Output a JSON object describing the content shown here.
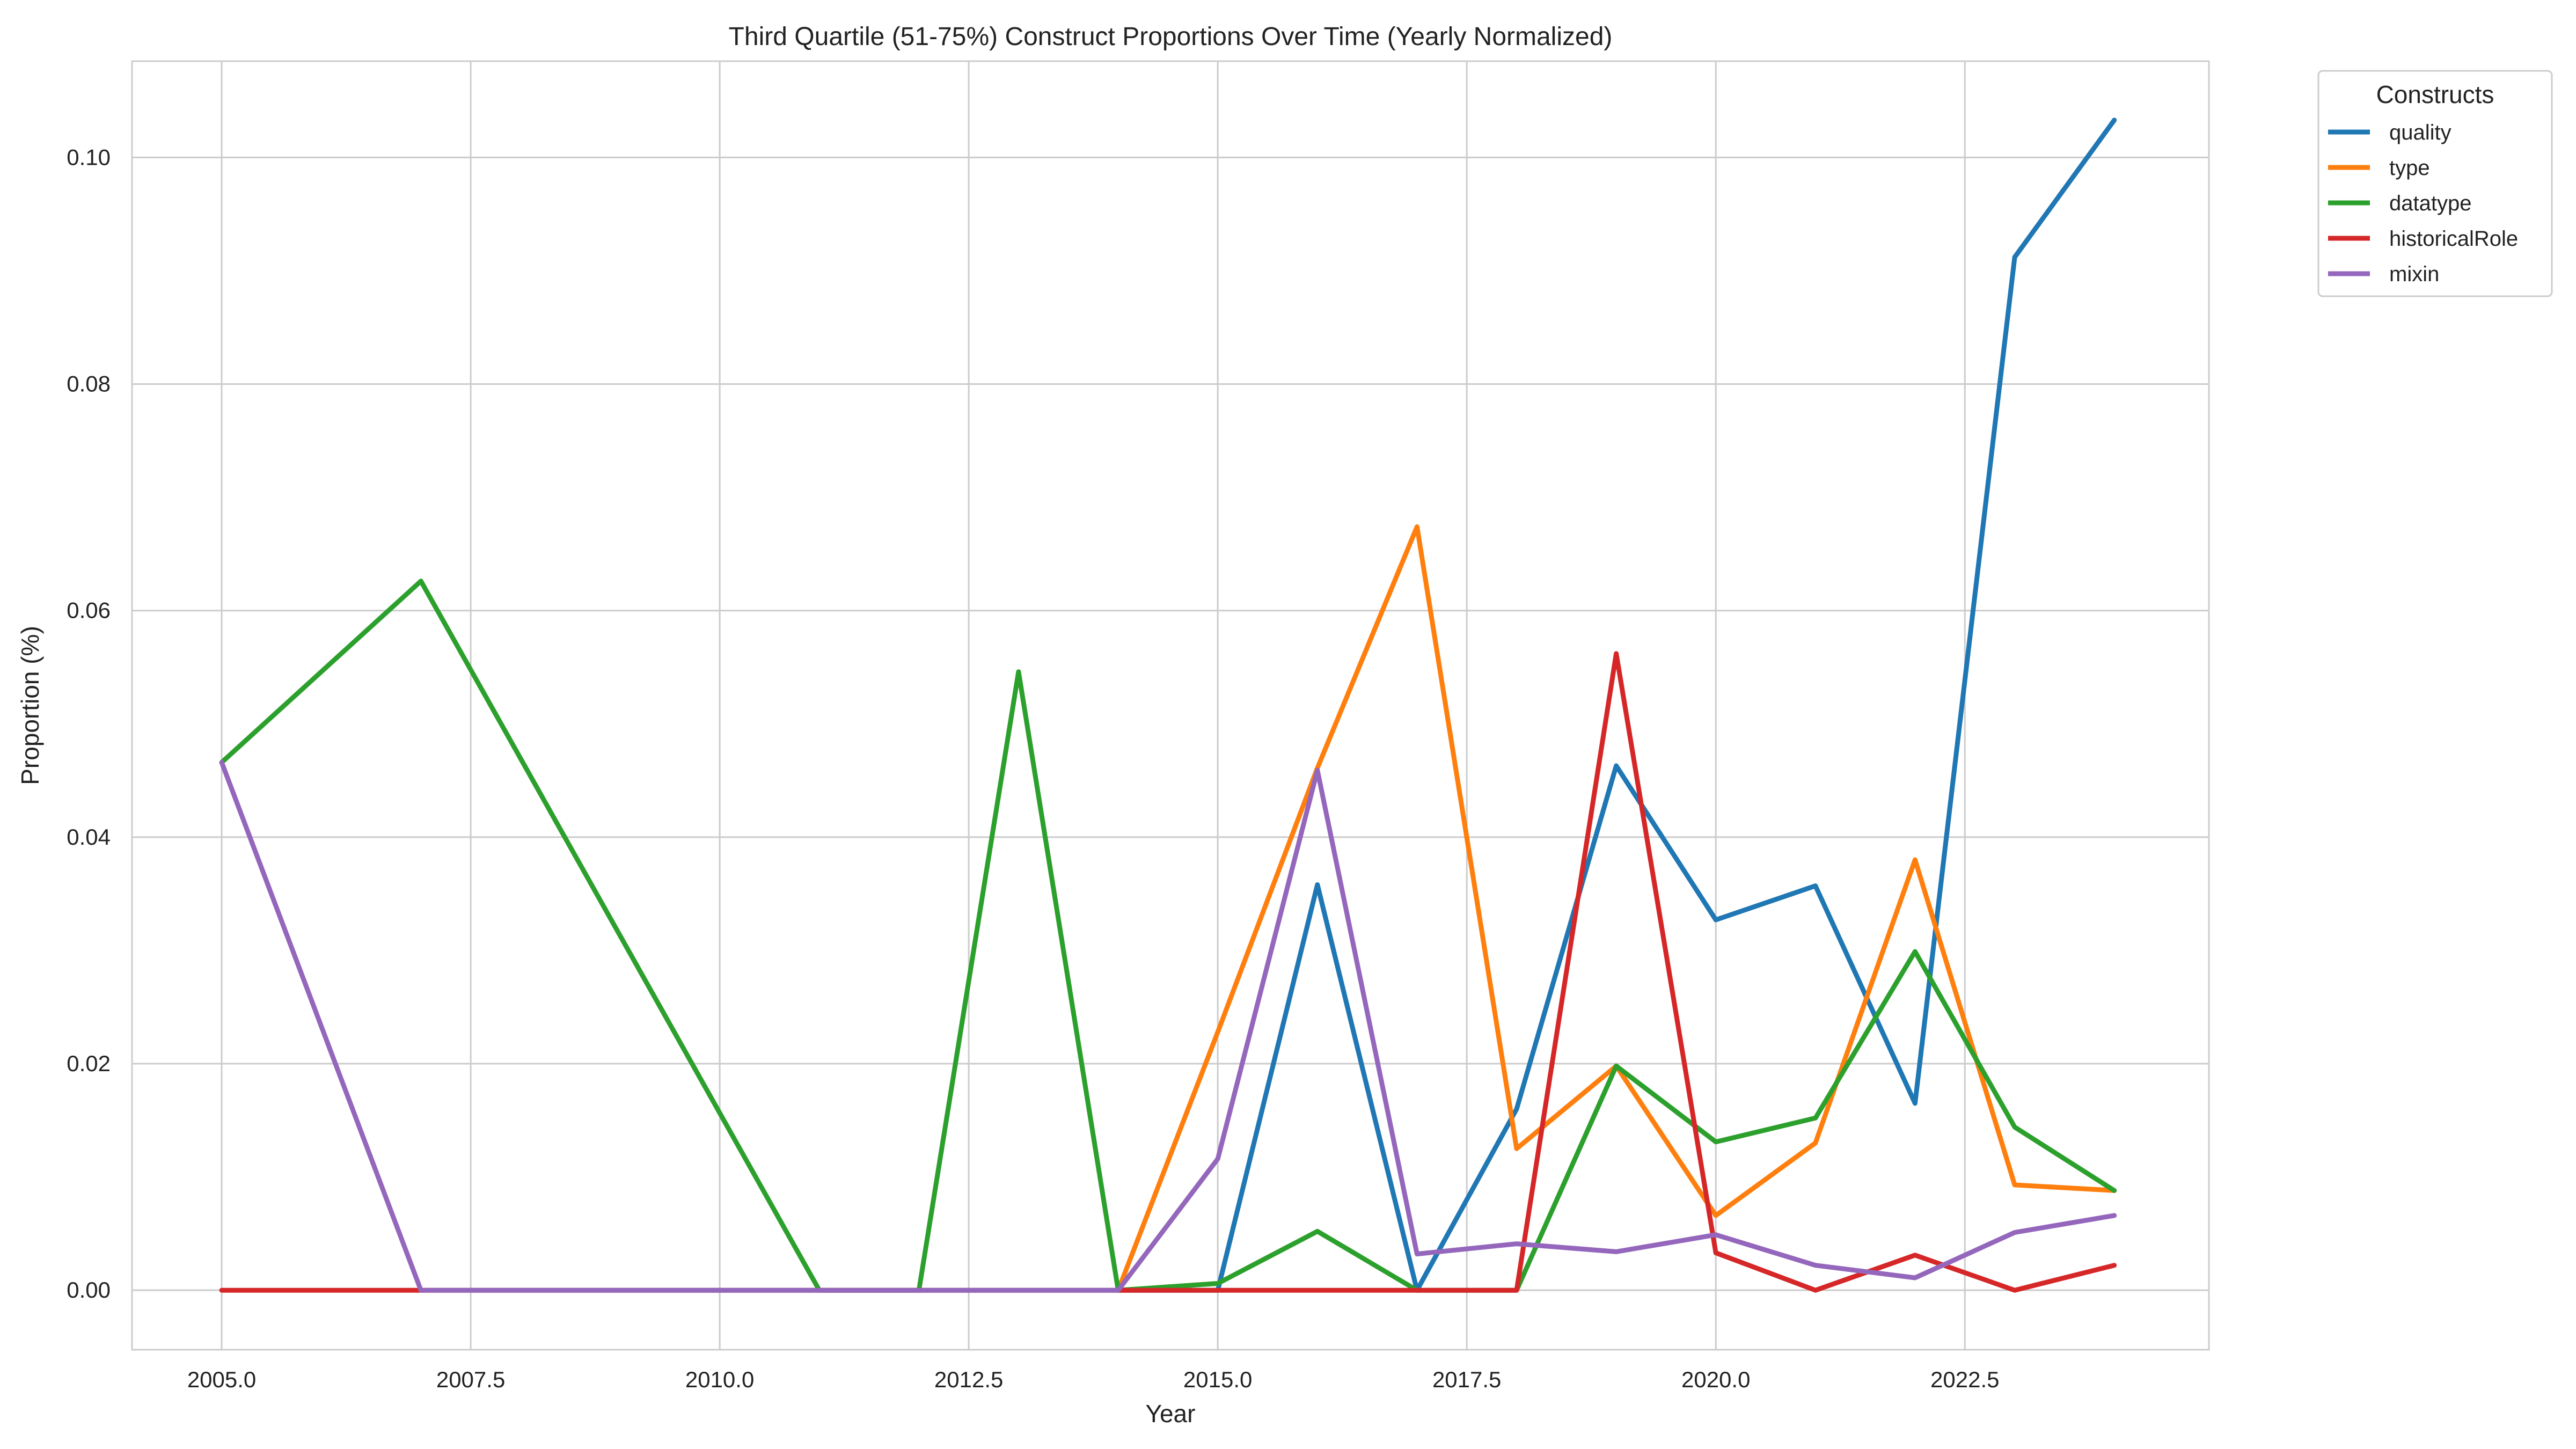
{
  "chart_data": {
    "type": "line",
    "title": "Third Quartile (51-75%) Construct Proportions Over Time (Yearly Normalized)",
    "xlabel": "Year",
    "ylabel": "Proportion (%)",
    "xlim": [
      2004.1,
      2024.95
    ],
    "ylim": [
      -0.00525,
      0.1085
    ],
    "xticks": [
      2005.0,
      2007.5,
      2010.0,
      2012.5,
      2015.0,
      2017.5,
      2020.0,
      2022.5
    ],
    "xtick_labels": [
      "2005.0",
      "2007.5",
      "2010.0",
      "2012.5",
      "2015.0",
      "2017.5",
      "2020.0",
      "2022.5"
    ],
    "yticks": [
      0.0,
      0.02,
      0.04,
      0.06,
      0.08,
      0.1
    ],
    "ytick_labels": [
      "0.00",
      "0.02",
      "0.04",
      "0.06",
      "0.08",
      "0.10"
    ],
    "grid": true,
    "legend_title": "Constructs",
    "legend_position": "outside top-right",
    "series": [
      {
        "name": "quality",
        "color": "#1f77b4",
        "x": [
          2014,
          2015,
          2016,
          2017,
          2018,
          2019,
          2020,
          2021,
          2022,
          2023,
          2024
        ],
        "y": [
          0.0,
          0.0,
          0.0358,
          0.0,
          0.016,
          0.0463,
          0.0327,
          0.0357,
          0.0165,
          0.0912,
          0.1033
        ]
      },
      {
        "name": "type",
        "color": "#ff7f0e",
        "x": [
          2014,
          2015,
          2016,
          2017,
          2018,
          2019,
          2020,
          2021,
          2022,
          2023,
          2024
        ],
        "y": [
          0.0,
          0.0228,
          0.0461,
          0.0674,
          0.0125,
          0.0198,
          0.0066,
          0.013,
          0.038,
          0.0093,
          0.0088
        ]
      },
      {
        "name": "datatype",
        "color": "#2ca02c",
        "x": [
          2005,
          2007,
          2011,
          2012,
          2013,
          2014,
          2015,
          2016,
          2017,
          2018,
          2019,
          2020,
          2021,
          2022,
          2023,
          2024
        ],
        "y": [
          0.0466,
          0.0626,
          0.0,
          0.0,
          0.0546,
          0.0,
          0.0006,
          0.0052,
          0.0,
          0.0,
          0.0198,
          0.0131,
          0.0152,
          0.0299,
          0.0144,
          0.0088
        ]
      },
      {
        "name": "historicalRole",
        "color": "#d62728",
        "x": [
          2005,
          2007,
          2011,
          2012,
          2013,
          2014,
          2015,
          2016,
          2017,
          2018,
          2019,
          2020,
          2021,
          2022,
          2023,
          2024
        ],
        "y": [
          0.0,
          0.0,
          0.0,
          0.0,
          0.0,
          0.0,
          0.0,
          0.0,
          0.0,
          0.0,
          0.0562,
          0.0033,
          0.0,
          0.0031,
          0.0,
          0.0022
        ]
      },
      {
        "name": "mixin",
        "color": "#9467bd",
        "x": [
          2005,
          2007,
          2011,
          2012,
          2013,
          2014,
          2015,
          2016,
          2017,
          2018,
          2019,
          2020,
          2021,
          2022,
          2023,
          2024
        ],
        "y": [
          0.0466,
          0.0,
          0.0,
          0.0,
          0.0,
          0.0,
          0.0116,
          0.0459,
          0.0032,
          0.0041,
          0.0034,
          0.0049,
          0.0022,
          0.0011,
          0.0051,
          0.0066
        ]
      }
    ]
  }
}
